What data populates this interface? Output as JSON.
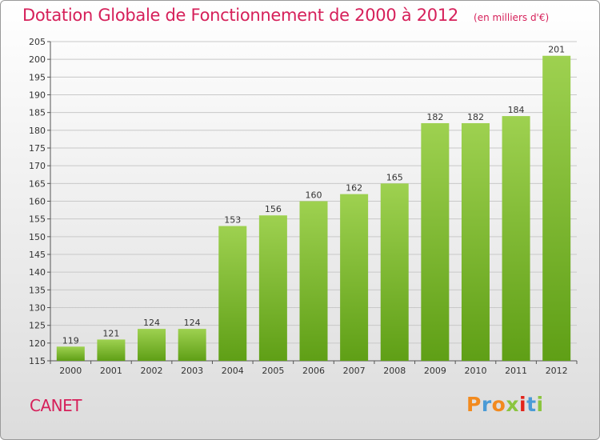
{
  "header": {
    "title": "Dotation Globale de Fonctionnement de 2000 à 2012",
    "unit_note": "(en milliers d'€)"
  },
  "footer": {
    "commune": "CANET",
    "logo_text": "Proxiti",
    "logo_colors": [
      "#f28a1e",
      "#4a9bd6",
      "#f28a1e",
      "#8bc53f",
      "#e2231a",
      "#4a9bd6",
      "#8bc53f"
    ]
  },
  "colors": {
    "title": "#d6205a",
    "bar_top": "#9ed150",
    "bar_bottom": "#5f9f16",
    "grid": "#c8c8c8"
  },
  "chart_data": {
    "type": "bar",
    "categories": [
      "2000",
      "2001",
      "2002",
      "2003",
      "2004",
      "2005",
      "2006",
      "2007",
      "2008",
      "2009",
      "2010",
      "2011",
      "2012"
    ],
    "values": [
      119,
      121,
      124,
      124,
      153,
      156,
      160,
      162,
      165,
      182,
      182,
      184,
      201
    ],
    "title": "Dotation Globale de Fonctionnement de 2000 à 2012",
    "subtitle": "(en milliers d'€)",
    "ylim": [
      115,
      205
    ],
    "yticks": [
      115,
      120,
      125,
      130,
      135,
      140,
      145,
      150,
      155,
      160,
      165,
      170,
      175,
      180,
      185,
      190,
      195,
      200,
      205
    ],
    "grid": true,
    "data_labels": true
  }
}
